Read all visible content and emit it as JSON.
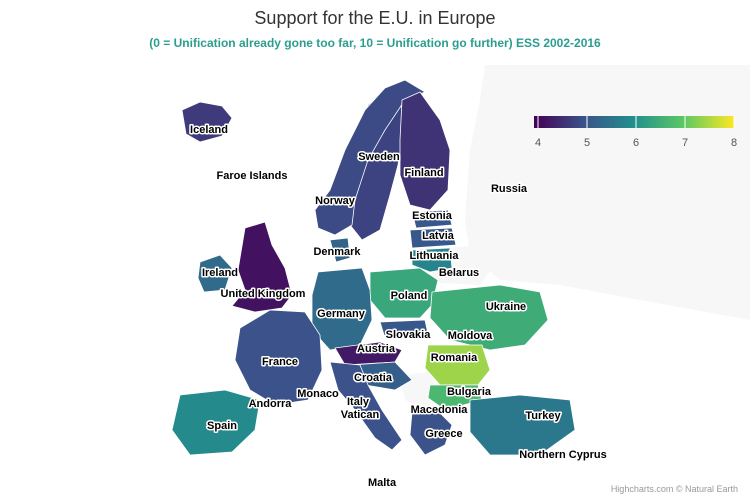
{
  "title": "Support for the E.U. in Europe",
  "subtitle": "(0 = Unification already gone too far, 10 = Unification go further) ESS 2002-2016",
  "credits": "Highcharts.com © Natural Earth",
  "legend": {
    "min": 4,
    "max": 8,
    "ticks": [
      "4",
      "5",
      "6",
      "7",
      "8"
    ],
    "colors": [
      "#440154",
      "#3b528b",
      "#21908c",
      "#5dc863",
      "#fde725"
    ]
  },
  "countries": [
    {
      "name": "Iceland",
      "value": 4.7
    },
    {
      "name": "Faroe Islands",
      "value": null
    },
    {
      "name": "Sweden",
      "value": 4.8
    },
    {
      "name": "Norway",
      "value": 4.9
    },
    {
      "name": "Finland",
      "value": 4.6
    },
    {
      "name": "Russia",
      "value": null
    },
    {
      "name": "Estonia",
      "value": 5.1
    },
    {
      "name": "Latvia",
      "value": 5.1
    },
    {
      "name": "Lithuania",
      "value": 5.8
    },
    {
      "name": "Belarus",
      "value": null
    },
    {
      "name": "Denmark",
      "value": 5.3
    },
    {
      "name": "Ireland",
      "value": 5.4
    },
    {
      "name": "United Kingdom",
      "value": 4.2
    },
    {
      "name": "Poland",
      "value": 6.4
    },
    {
      "name": "Ukraine",
      "value": 6.5
    },
    {
      "name": "Germany",
      "value": 5.4
    },
    {
      "name": "Slovakia",
      "value": 5.1
    },
    {
      "name": "Moldova",
      "value": null
    },
    {
      "name": "France",
      "value": 5.0
    },
    {
      "name": "Austria",
      "value": 4.3
    },
    {
      "name": "Romania",
      "value": 7.4
    },
    {
      "name": "Croatia",
      "value": 5.2
    },
    {
      "name": "Bulgaria",
      "value": 6.7
    },
    {
      "name": "Monaco",
      "value": null
    },
    {
      "name": "Andorra",
      "value": null
    },
    {
      "name": "Italy",
      "value": 5.0
    },
    {
      "name": "Vatican",
      "value": null
    },
    {
      "name": "Macedonia",
      "value": null
    },
    {
      "name": "Spain",
      "value": 5.9
    },
    {
      "name": "Greece",
      "value": 5.0
    },
    {
      "name": "Turkey",
      "value": 5.6
    },
    {
      "name": "Northern Cyprus",
      "value": null
    },
    {
      "name": "Malta",
      "value": null
    }
  ]
}
